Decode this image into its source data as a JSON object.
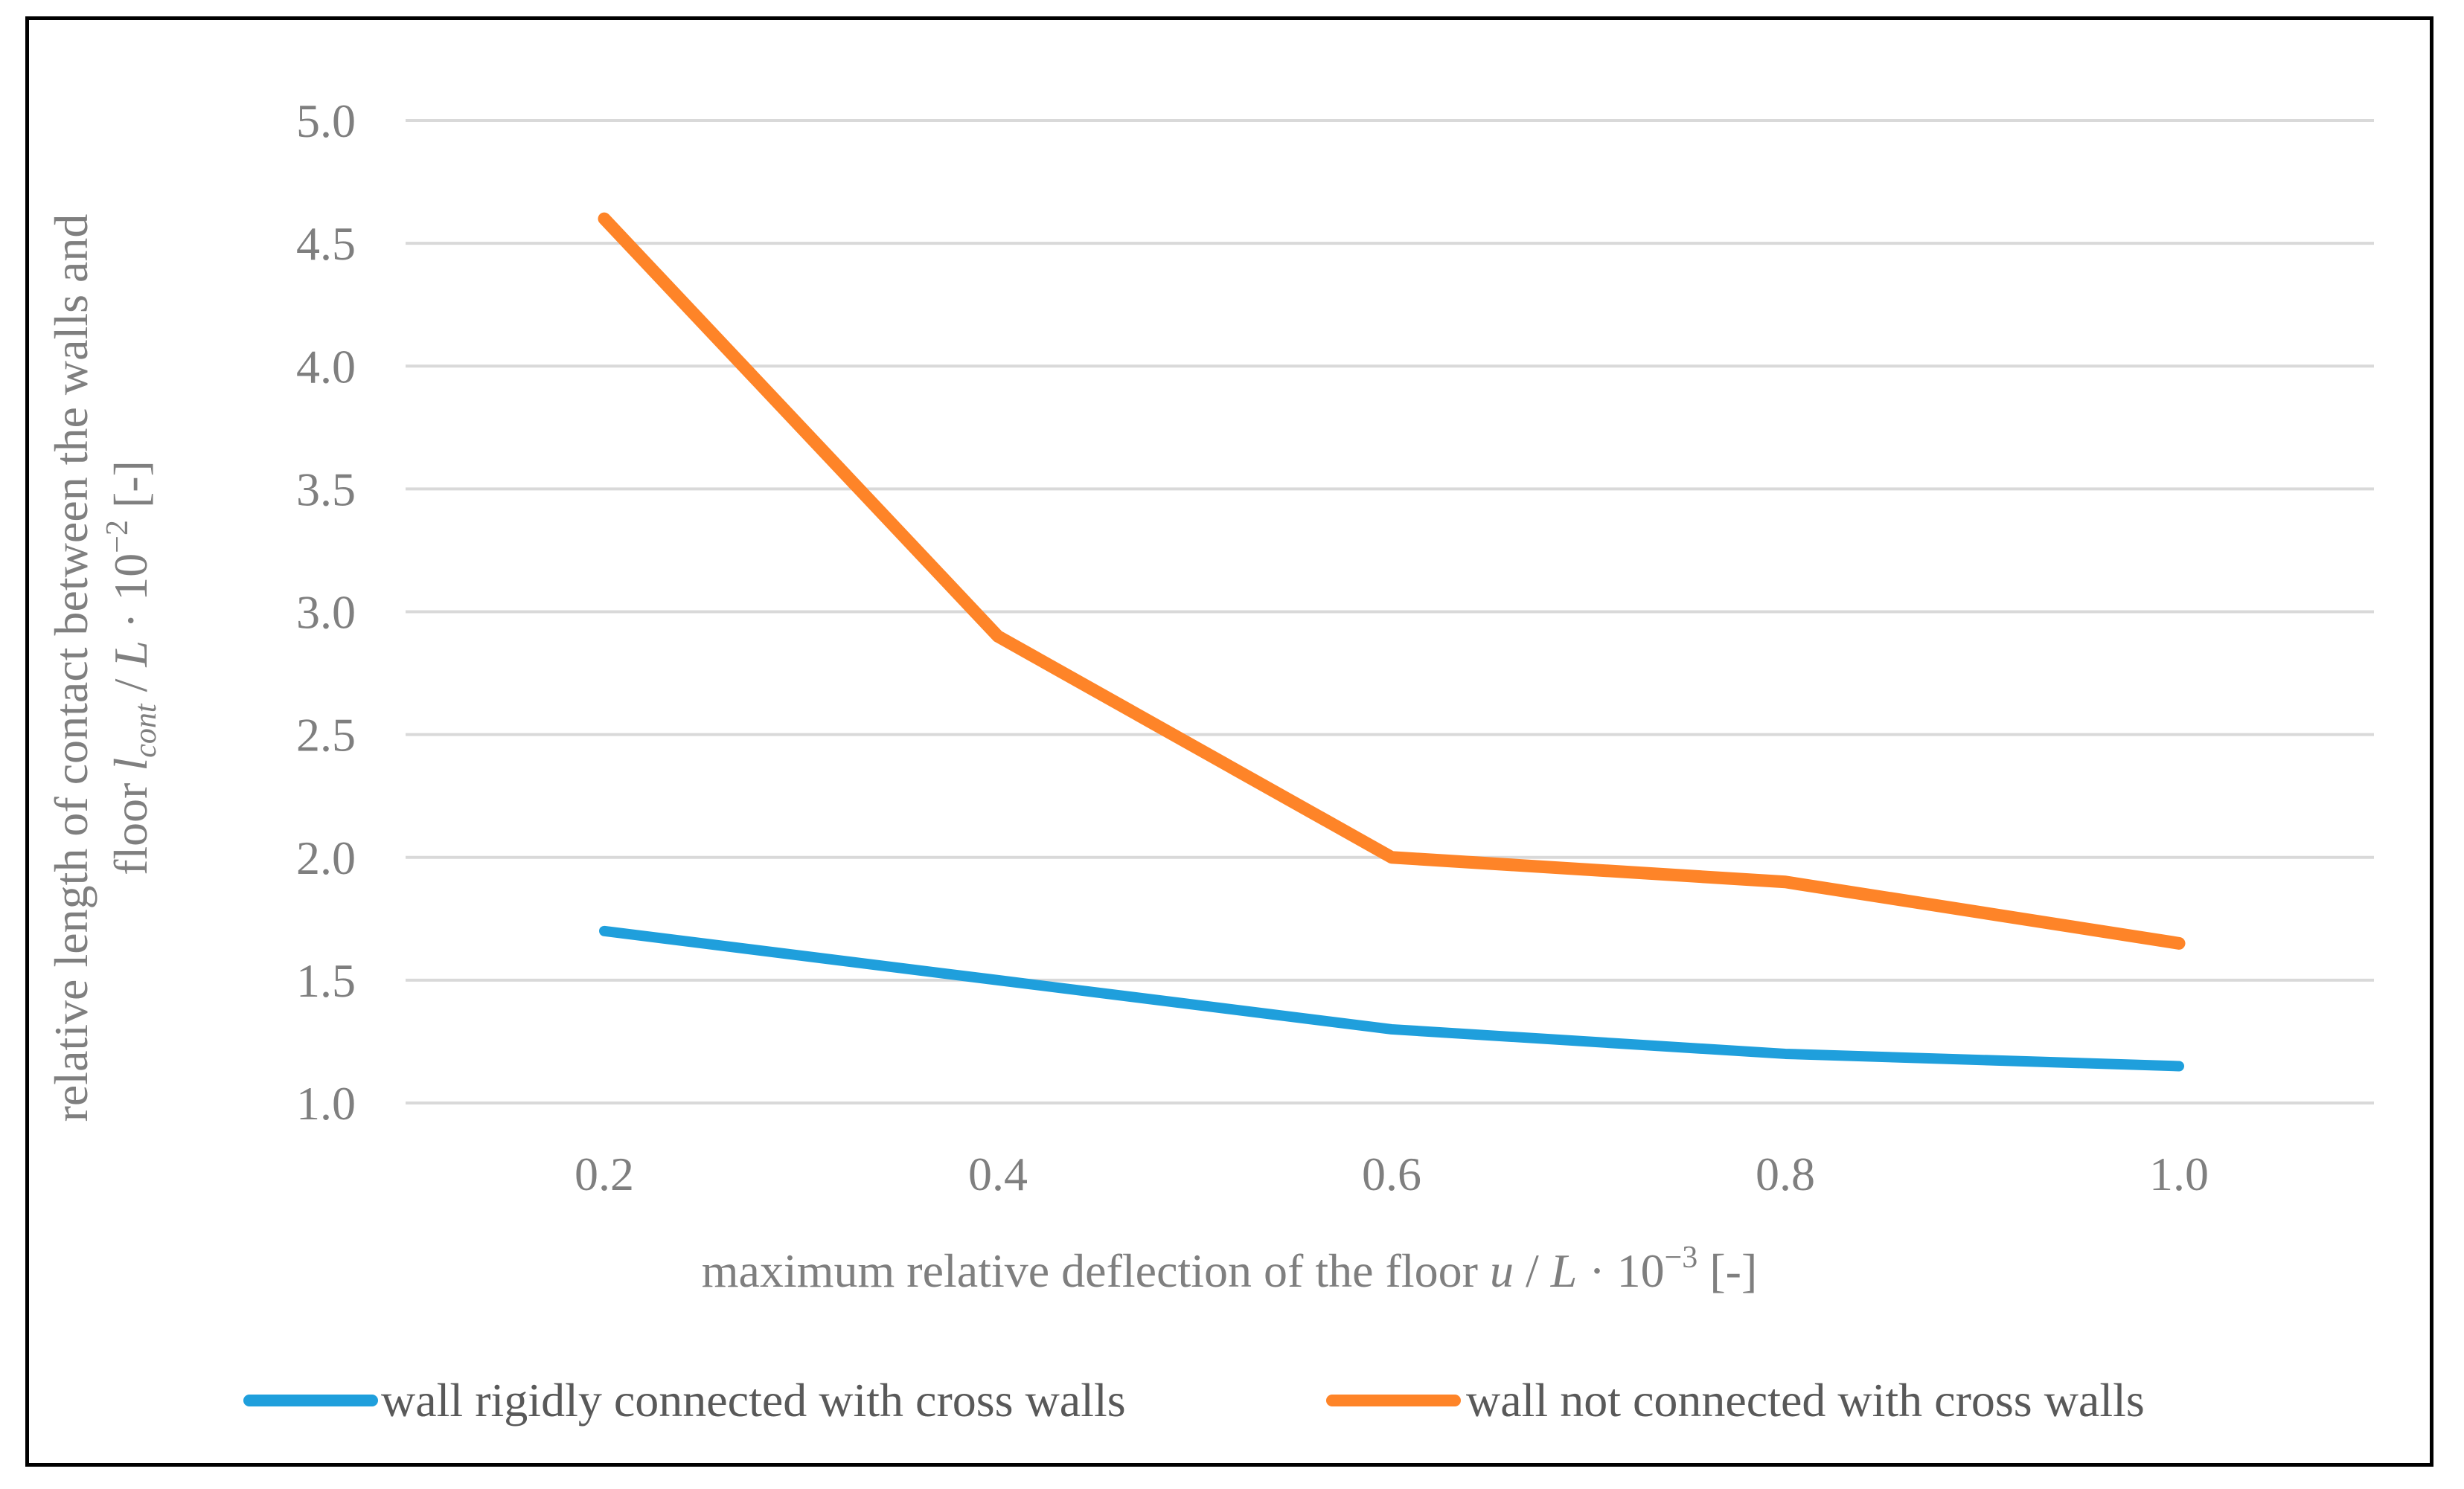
{
  "chart_data": {
    "type": "line",
    "title": "",
    "x": [
      "0.2",
      "0.4",
      "0.6",
      "0.8",
      "1.0"
    ],
    "series": [
      {
        "name": "wall rigidly connected with cross walls",
        "color": "#1f9fdc",
        "values": [
          1.7,
          1.5,
          1.3,
          1.2,
          1.15
        ]
      },
      {
        "name": "wall not connected with cross walls",
        "color": "#fe8428",
        "values": [
          4.6,
          2.9,
          2.0,
          1.9,
          1.65
        ]
      }
    ],
    "ylim": [
      1.0,
      5.0
    ],
    "yticks": [
      "1.0",
      "1.5",
      "2.0",
      "2.5",
      "3.0",
      "3.5",
      "4.0",
      "4.5",
      "5.0"
    ],
    "grid": true,
    "legend": "bottom",
    "xlabel": {
      "prefix": "maximum relative deflection of the floor ",
      "u": "u",
      "slash": " / ",
      "L": "L",
      "middle": " · 10",
      "exp": "−3",
      "suffix": " [-]"
    },
    "ylabel": {
      "line1": "relative length of contact between the walls and",
      "line2_prefix": "floor ",
      "l": "l",
      "sub": "cont",
      "slash": " / ",
      "L": "L",
      "middle": " · 10",
      "exp": "−2",
      "suffix": " [-]"
    }
  }
}
